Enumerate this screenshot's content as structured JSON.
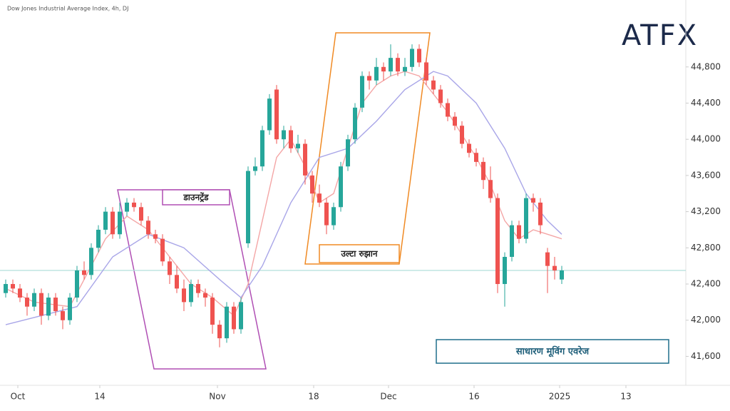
{
  "chart_data": {
    "type": "candlestick",
    "title": "Dow Jones Industrial Average Index, 4h, DJ",
    "logo": "ATFX",
    "annotations": [
      "डाउनट्रेंड",
      "उल्टा रुझान",
      "साधारण मूविंग एवरेज"
    ],
    "xlim": [
      -0.8,
      95.4
    ],
    "ylim": [
      41280,
      45540
    ],
    "yticks": [
      {
        "value": 41600,
        "label": "41,600"
      },
      {
        "value": 42000,
        "label": "42,000"
      },
      {
        "value": 42400,
        "label": "42,400"
      },
      {
        "value": 42800,
        "label": "42,800"
      },
      {
        "value": 43200,
        "label": "43,200"
      },
      {
        "value": 43600,
        "label": "43,600"
      },
      {
        "value": 44000,
        "label": "44,000"
      },
      {
        "value": 44400,
        "label": "44,400"
      },
      {
        "value": 44800,
        "label": "44,800"
      }
    ],
    "xticks": [
      {
        "value": 1.7,
        "label": "Oct"
      },
      {
        "value": 13.2,
        "label": "14"
      },
      {
        "value": 29.7,
        "label": "Nov"
      },
      {
        "value": 43.2,
        "label": "18"
      },
      {
        "value": 53.7,
        "label": "Dec"
      },
      {
        "value": 65.7,
        "label": "16"
      },
      {
        "value": 77.7,
        "label": "2025"
      },
      {
        "value": 87,
        "label": "13"
      }
    ],
    "grid": false,
    "up_color": "#26a69a",
    "down_color": "#ef5350",
    "reference_line": 42550,
    "reference_color": "#b2dfdb",
    "open": [
      42300,
      42400,
      42350,
      42250,
      42150,
      42300,
      42050,
      42250,
      42100,
      42000,
      42250,
      42550,
      42500,
      42800,
      43000,
      43200,
      42950,
      43200,
      43300,
      43250,
      43100,
      42950,
      42900,
      42650,
      42500,
      42350,
      42200,
      42400,
      42300,
      42250,
      41950,
      41800,
      42150,
      41900,
      42850,
      43650,
      43700,
      44100,
      44550,
      44000,
      44100,
      43900,
      43950,
      43600,
      43400,
      43300,
      43050,
      43250,
      43700,
      44000,
      44350,
      44700,
      44650,
      44800,
      44750,
      44900,
      44750,
      44800,
      45000,
      44850,
      44650,
      44550,
      44400,
      44250,
      44150,
      43950,
      43850,
      43750,
      43550,
      43350,
      42400,
      42700,
      43050,
      42900,
      43350,
      43300,
      42750,
      42600,
      42450
    ],
    "high": [
      42450,
      42450,
      42400,
      42300,
      42350,
      42350,
      42300,
      42300,
      42150,
      42300,
      42600,
      42650,
      42850,
      43050,
      43250,
      43250,
      43300,
      43350,
      43350,
      43300,
      43150,
      43000,
      42950,
      42700,
      42600,
      42450,
      42450,
      42450,
      42350,
      42300,
      42000,
      42200,
      42200,
      42250,
      43700,
      43800,
      44150,
      44500,
      44600,
      44150,
      44150,
      44050,
      44000,
      43650,
      43500,
      43350,
      43300,
      43750,
      44050,
      44400,
      44750,
      44750,
      44900,
      44850,
      45050,
      44950,
      44900,
      45050,
      45050,
      44900,
      44700,
      44600,
      44450,
      44300,
      44200,
      44000,
      43900,
      43800,
      43700,
      43400,
      42750,
      43100,
      43100,
      43400,
      43400,
      43350,
      42800,
      42700,
      42600
    ],
    "low": [
      42250,
      42300,
      42200,
      42050,
      42100,
      41950,
      42000,
      42050,
      41900,
      41950,
      42200,
      42450,
      42450,
      42750,
      42950,
      42900,
      42900,
      43150,
      43200,
      43050,
      42900,
      42850,
      42600,
      42400,
      42300,
      42100,
      42150,
      42250,
      42150,
      41850,
      41700,
      41750,
      41850,
      41850,
      42800,
      43600,
      43650,
      44050,
      43950,
      43900,
      43850,
      43850,
      43500,
      43300,
      43250,
      42950,
      43000,
      43200,
      43650,
      43950,
      44300,
      44550,
      44600,
      44650,
      44700,
      44700,
      44700,
      44750,
      44800,
      44600,
      44500,
      44350,
      44200,
      44100,
      43900,
      43800,
      43700,
      43450,
      43300,
      42300,
      42150,
      42650,
      42850,
      42850,
      43200,
      42950,
      42300,
      42450,
      42400
    ],
    "close": [
      42400,
      42350,
      42250,
      42150,
      42300,
      42050,
      42250,
      42100,
      42000,
      42250,
      42550,
      42500,
      42800,
      43000,
      43200,
      42950,
      43200,
      43300,
      43250,
      43100,
      42950,
      42900,
      42650,
      42500,
      42350,
      42200,
      42400,
      42300,
      42250,
      41950,
      41800,
      42150,
      41900,
      42200,
      43650,
      43700,
      44100,
      44450,
      44000,
      44100,
      43900,
      43950,
      43600,
      43400,
      43300,
      43050,
      43250,
      43700,
      44000,
      44350,
      44700,
      44650,
      44800,
      44750,
      44900,
      44750,
      44800,
      45000,
      44850,
      44650,
      44550,
      44400,
      44250,
      44150,
      43950,
      43850,
      43750,
      43550,
      43350,
      42400,
      42700,
      43050,
      42900,
      43350,
      43300,
      43050,
      42600,
      42550,
      42550
    ],
    "moving_averages": [
      {
        "color": "#f4a6a6",
        "x": [
          0,
          4,
          9,
          14,
          17,
          20,
          23,
          26,
          29,
          32,
          34,
          36,
          38,
          40,
          42,
          44,
          46,
          48,
          50,
          52,
          54,
          56,
          58,
          60,
          62,
          64,
          66,
          68,
          70,
          72,
          74,
          76,
          78
        ],
        "values": [
          42350,
          42200,
          42150,
          42900,
          43150,
          43000,
          42700,
          42400,
          42250,
          42050,
          42400,
          43100,
          43800,
          44000,
          43700,
          43300,
          43400,
          43900,
          44400,
          44600,
          44700,
          44750,
          44700,
          44500,
          44300,
          44050,
          43800,
          43500,
          43100,
          42900,
          43000,
          42950,
          42900
        ]
      },
      {
        "color": "#a9a6e8",
        "x": [
          0,
          10,
          15,
          20,
          25,
          30,
          33,
          36,
          40,
          44,
          48,
          52,
          56,
          60,
          62,
          66,
          70,
          73,
          76,
          78
        ],
        "values": [
          41950,
          42150,
          42700,
          42950,
          42800,
          42450,
          42250,
          42600,
          43300,
          43800,
          43900,
          44200,
          44550,
          44750,
          44700,
          44400,
          43900,
          43400,
          43100,
          42950
        ]
      }
    ]
  }
}
